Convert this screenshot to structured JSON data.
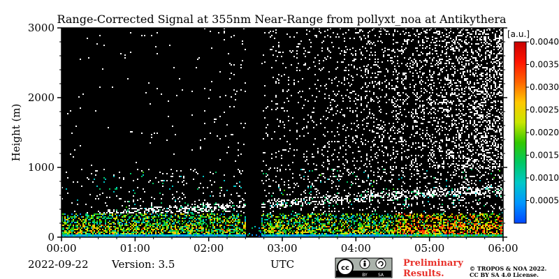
{
  "chart_data": {
    "type": "heatmap",
    "title": "Range-Corrected Signal at 355nm Near-Range from pollyxt_noa at Antikythera",
    "xlabel": "UTC",
    "ylabel": "Height (m)",
    "xlim": [
      "00:00",
      "06:00"
    ],
    "ylim": [
      0,
      3000
    ],
    "x_ticks": [
      "00:00",
      "01:00",
      "02:00",
      "03:00",
      "04:00",
      "05:00",
      "06:00"
    ],
    "y_ticks": [
      0,
      1000,
      2000,
      3000
    ],
    "colorbar": {
      "label": "[a.u.]",
      "range": [
        0.0,
        0.004
      ],
      "ticks": [
        "0.0005",
        "0.0010",
        "0.0015",
        "0.0020",
        "0.0025",
        "0.0030",
        "0.0035",
        "0.0040"
      ],
      "colormap": [
        "#0046ff",
        "#0096ff",
        "#00c8c8",
        "#00c864",
        "#32c800",
        "#c8e600",
        "#ffc800",
        "#ff6400",
        "#ff1400",
        "#c80000"
      ]
    },
    "background_color": "#000000",
    "features": [
      {
        "name": "near-surface high signal layer",
        "height_range_m": [
          0,
          350
        ],
        "value_range": [
          0.0005,
          0.004
        ]
      },
      {
        "name": "aerosol layer / noise",
        "height_range_m": [
          350,
          1000
        ],
        "time_range": [
          "00:30",
          "06:00"
        ]
      },
      {
        "name": "instrument gap",
        "time_range": [
          "02:30",
          "02:42"
        ]
      }
    ]
  },
  "footer": {
    "date": "2022-09-22",
    "version": "Version: 3.5",
    "utc_label": "UTC",
    "license_badge": "cc-by-sa-badge",
    "license_small_by": "BY",
    "license_small_sa": "SA",
    "preliminary_line1": "Preliminary",
    "preliminary_line2": "Results.",
    "credit_line1": "© TROPOS & NOA 2022.",
    "credit_line2": "CC BY SA 4.0 License."
  }
}
